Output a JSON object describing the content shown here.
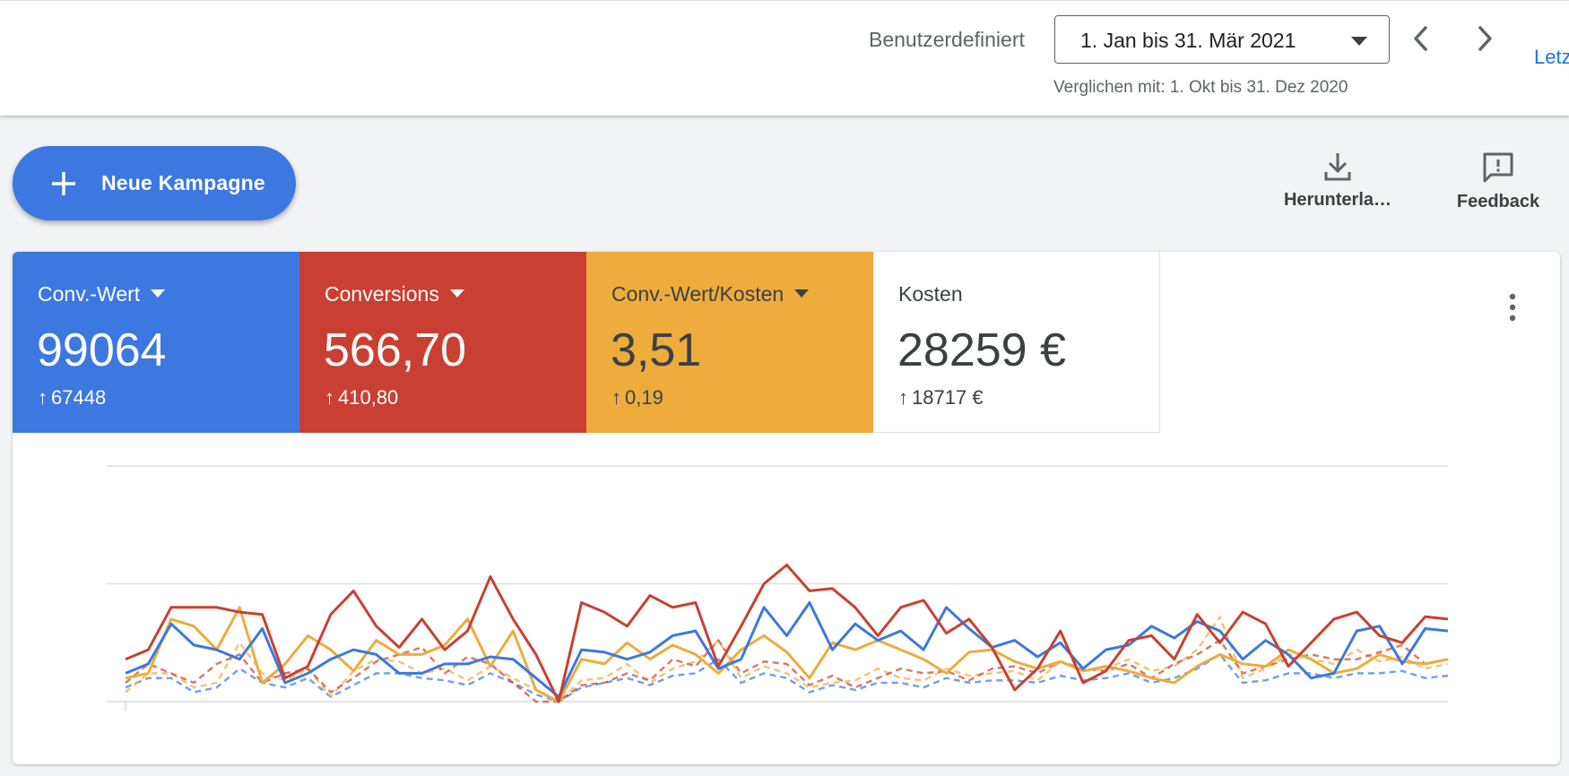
{
  "header": {
    "range_label": "Benutzerdefiniert",
    "date_range": "1. Jan bis 31. Mär 2021",
    "compare_text": "Verglichen mit: 1. Okt bis 31. Dez 2020",
    "cut_link": "Letz"
  },
  "actions": {
    "new_campaign": "Neue Kampagne",
    "download": "Herunterla…",
    "feedback": "Feedback"
  },
  "metrics": [
    {
      "label": "Conv.-Wert",
      "value": "99064",
      "delta": "67448",
      "color": "#3c78e0",
      "dropdown": true
    },
    {
      "label": "Conversions",
      "value": "566,70",
      "delta": "410,80",
      "color": "#c94032",
      "dropdown": true
    },
    {
      "label": "Conv.-Wert/Kosten",
      "value": "3,51",
      "delta": "0,19",
      "color": "#edac3c",
      "dropdown": true
    },
    {
      "label": "Kosten",
      "value": "28259 €",
      "delta": "18717 €",
      "color": "#ffffff",
      "dropdown": false
    }
  ],
  "icons": {
    "prev": "chevron-left-icon",
    "next": "chevron-right-icon",
    "download": "download-icon",
    "feedback": "feedback-icon",
    "more": "more-vert-icon",
    "add": "plus-icon"
  },
  "chart_data": {
    "type": "line",
    "grid": true,
    "legend": "none",
    "ylim": [
      0,
      100
    ],
    "series": [
      {
        "color": "#c94032",
        "style": "solid",
        "values": [
          18,
          22,
          40,
          40,
          40,
          38,
          37,
          10,
          15,
          37,
          47,
          32,
          23,
          35,
          22,
          30,
          53,
          35,
          20,
          0,
          42,
          38,
          32,
          45,
          40,
          42,
          15,
          32,
          50,
          58,
          47,
          48,
          40,
          28,
          40,
          43,
          29,
          35,
          23,
          5,
          14,
          30,
          8,
          13,
          26,
          28,
          18,
          37,
          25,
          38,
          33,
          15,
          25,
          35,
          38,
          28,
          25,
          36,
          35
        ]
      },
      {
        "color": "#3c78e0",
        "style": "solid",
        "values": [
          12,
          16,
          33,
          24,
          22,
          18,
          31,
          8,
          12,
          18,
          22,
          20,
          12,
          12,
          16,
          16,
          19,
          18,
          10,
          2,
          22,
          21,
          18,
          21,
          28,
          30,
          14,
          18,
          40,
          28,
          42,
          22,
          33,
          26,
          30,
          22,
          40,
          31,
          23,
          26,
          19,
          25,
          14,
          22,
          24,
          32,
          27,
          34,
          30,
          18,
          26,
          20,
          10,
          12,
          30,
          32,
          16,
          31,
          30
        ]
      },
      {
        "color": "#edac3c",
        "style": "solid",
        "values": [
          10,
          12,
          35,
          32,
          22,
          40,
          8,
          16,
          28,
          22,
          13,
          26,
          20,
          20,
          24,
          35,
          15,
          30,
          5,
          0,
          18,
          16,
          25,
          18,
          24,
          20,
          12,
          22,
          28,
          21,
          10,
          25,
          22,
          26,
          22,
          18,
          12,
          21,
          22,
          17,
          14,
          17,
          13,
          15,
          13,
          10,
          8,
          15,
          20,
          16,
          15,
          22,
          18,
          12,
          14,
          20,
          17,
          16,
          18
        ]
      },
      {
        "color": "#c94032",
        "style": "dashed",
        "values": [
          8,
          16,
          12,
          8,
          16,
          20,
          8,
          12,
          14,
          4,
          10,
          17,
          20,
          23,
          12,
          19,
          16,
          8,
          0,
          0,
          7,
          8,
          12,
          9,
          18,
          15,
          26,
          12,
          17,
          16,
          7,
          11,
          6,
          10,
          14,
          12,
          13,
          9,
          14,
          15,
          12,
          17,
          14,
          13,
          16,
          10,
          16,
          20,
          26,
          12,
          15,
          18,
          20,
          18,
          18,
          21,
          24,
          16,
          18
        ]
      },
      {
        "color": "#edac3c",
        "style": "dashed",
        "values": [
          4,
          12,
          12,
          6,
          8,
          25,
          12,
          9,
          14,
          2,
          13,
          18,
          17,
          12,
          14,
          9,
          15,
          10,
          5,
          0,
          9,
          10,
          16,
          8,
          14,
          17,
          26,
          10,
          15,
          12,
          6,
          8,
          9,
          14,
          10,
          9,
          14,
          11,
          12,
          13,
          9,
          17,
          13,
          14,
          18,
          13,
          15,
          22,
          36,
          10,
          14,
          20,
          18,
          16,
          22,
          17,
          19,
          14,
          16
        ]
      },
      {
        "color": "#3c78e0",
        "style": "dashed",
        "values": [
          6,
          10,
          10,
          4,
          6,
          14,
          8,
          6,
          10,
          2,
          7,
          12,
          12,
          10,
          9,
          7,
          12,
          8,
          3,
          0,
          6,
          8,
          10,
          7,
          11,
          12,
          18,
          8,
          12,
          10,
          4,
          7,
          5,
          8,
          8,
          6,
          10,
          8,
          9,
          9,
          8,
          11,
          9,
          10,
          12,
          8,
          10,
          14,
          20,
          8,
          9,
          12,
          12,
          10,
          12,
          12,
          13,
          10,
          11
        ]
      }
    ]
  }
}
